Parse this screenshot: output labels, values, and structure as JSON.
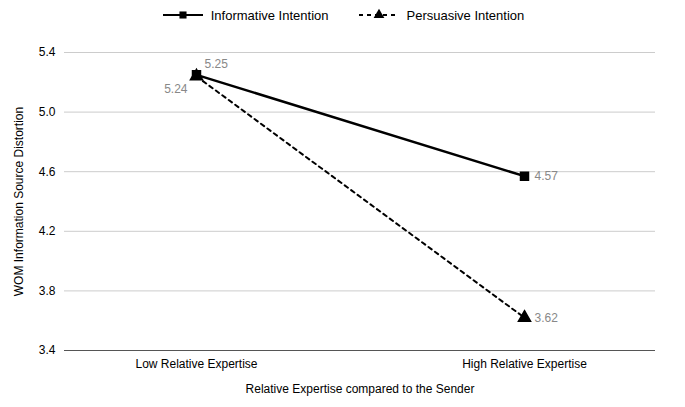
{
  "chart_data": {
    "type": "line",
    "xlabel": "Relative Expertise compared to the Sender",
    "ylabel": "WOM Information Source Distortion",
    "categories": [
      "Low Relative Expertise",
      "High Relative Expertise"
    ],
    "series": [
      {
        "name": "Informative Intention",
        "color": "#000000",
        "values": [
          5.25,
          4.57
        ],
        "marker": "square",
        "line_style": "solid"
      },
      {
        "name": "Persuasive Intention",
        "color": "#000000",
        "values": [
          5.24,
          3.62
        ],
        "marker": "triangle",
        "line_style": "dotted"
      }
    ],
    "ylim": [
      3.4,
      5.4
    ],
    "yticks": [
      3.4,
      3.8,
      4.2,
      4.6,
      {
        "value": 5.0,
        "label": "5.0"
      },
      5.4
    ],
    "grid": true,
    "legend": "top",
    "data_labels": true
  }
}
